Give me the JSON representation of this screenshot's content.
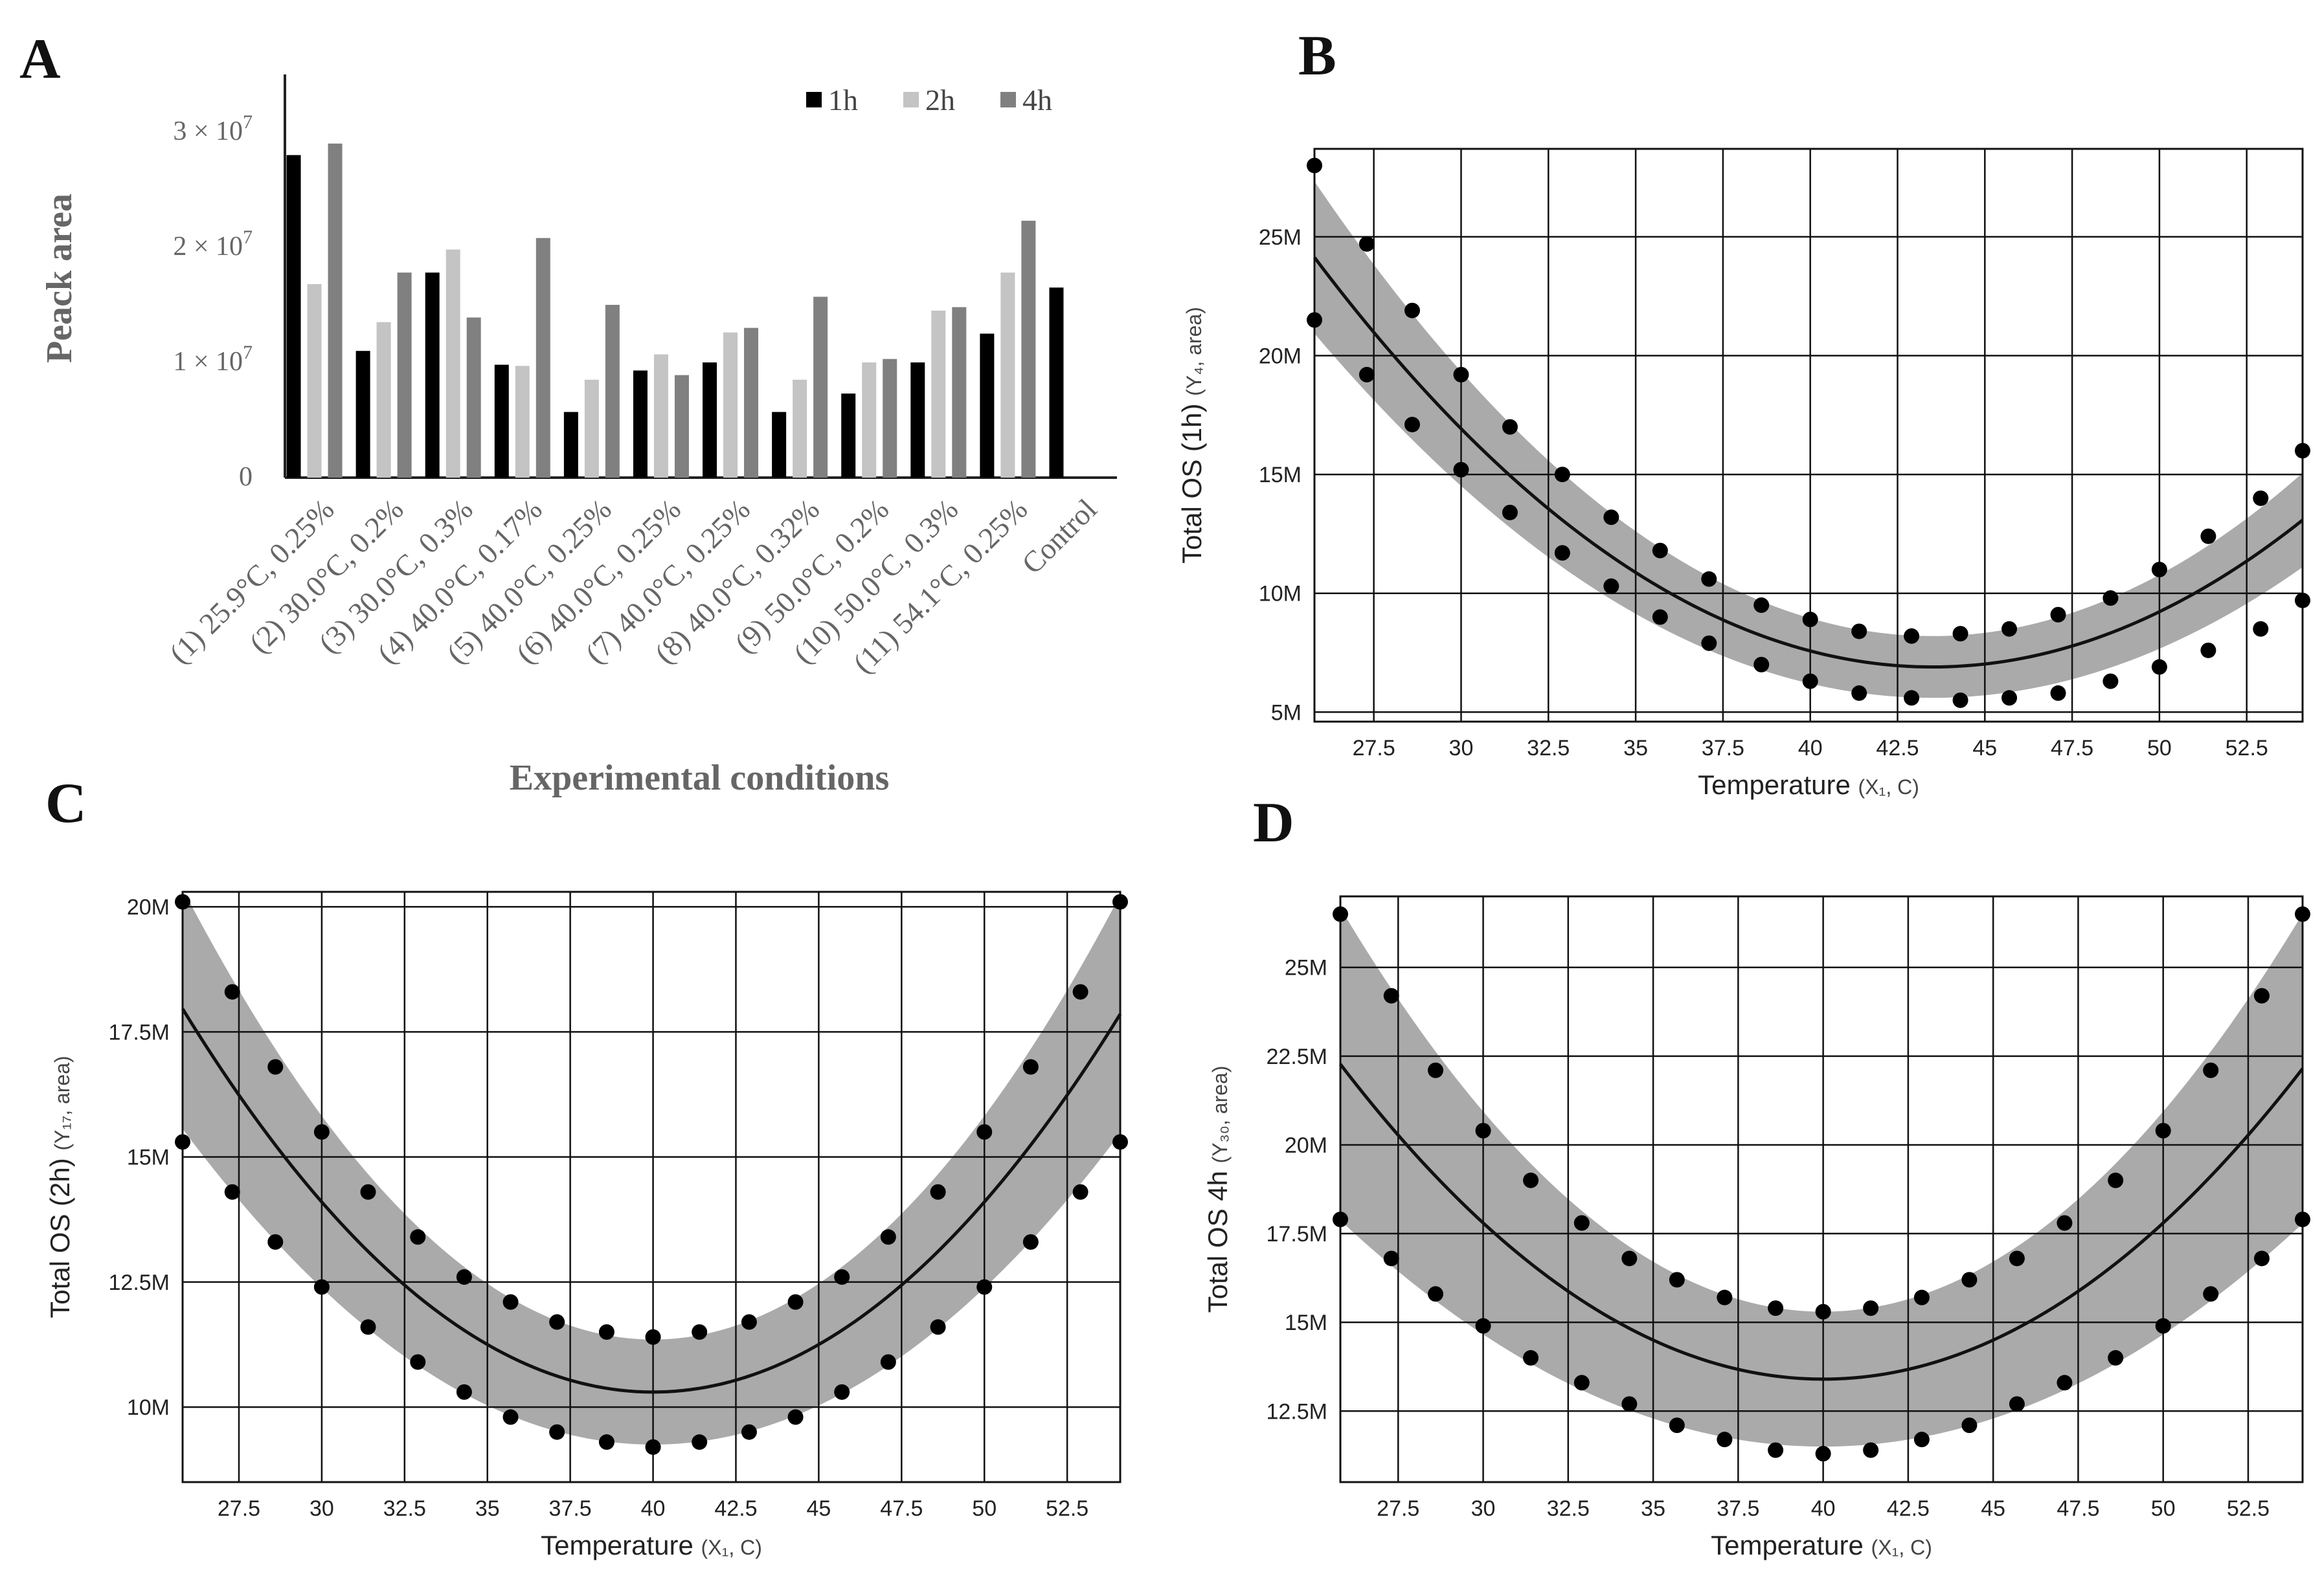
{
  "chart_data": [
    {
      "panel": "A",
      "type": "bar",
      "title": "",
      "xlabel": "Experimental conditions",
      "ylabel": "Peack area",
      "ylim": [
        0,
        35000000
      ],
      "yticks": [
        {
          "value": 0,
          "label": "0"
        },
        {
          "value": 10000000,
          "label": "1 × 10",
          "exp": "7"
        },
        {
          "value": 20000000,
          "label": "2 × 10",
          "exp": "7"
        },
        {
          "value": 30000000,
          "label": "3 × 10",
          "exp": "7"
        }
      ],
      "categories": [
        "(1) 25.9°C, 0.25%",
        "(2) 30.0°C, 0.2%",
        "(3) 30.0°C, 0.3%",
        "(4) 40.0°C, 0.17%",
        "(5) 40.0°C, 0.25%",
        "(6) 40.0°C, 0.25%",
        "(7) 40.0°C, 0.25%",
        "(8) 40.0°C, 0.32%",
        "(9) 50.0°C, 0.2%",
        "(10) 50.0°C, 0.3%",
        "(11) 54.1°C, 0.25%",
        "Control"
      ],
      "legend_position": "top-right",
      "series": [
        {
          "name": "1h",
          "color": "#000000",
          "values": [
            28000000,
            11000000,
            17800000,
            9800000,
            5700000,
            9300000,
            10000000,
            5700000,
            7300000,
            10000000,
            12500000,
            16500000
          ]
        },
        {
          "name": "2h",
          "color": "#c4c4c4",
          "values": [
            16800000,
            13500000,
            19800000,
            9700000,
            8500000,
            10700000,
            12600000,
            8500000,
            10000000,
            14500000,
            17800000,
            null
          ]
        },
        {
          "name": "4h",
          "color": "#808080",
          "values": [
            29000000,
            17800000,
            13900000,
            20800000,
            15000000,
            8900000,
            13000000,
            15700000,
            10300000,
            14800000,
            22300000,
            null
          ]
        }
      ]
    },
    {
      "panel": "B",
      "type": "line",
      "xlabel": "Temperature",
      "xlabel_sub": "(X₁, C)",
      "ylabel": "Total OS (1h)",
      "ylabel_sub": "(Y₄, area)",
      "xlim": [
        25.8,
        54.1
      ],
      "ylim": [
        4600000,
        28700000
      ],
      "xticks": [
        27.5,
        30,
        32.5,
        35,
        37.5,
        40,
        42.5,
        45,
        47.5,
        50,
        52.5
      ],
      "xtick_labels": [
        "27.5",
        "30",
        "32.5",
        "35",
        "37.5",
        "40",
        "42.5",
        "45",
        "47.5",
        "50",
        "52.5"
      ],
      "yticks": [
        5000000,
        10000000,
        15000000,
        20000000,
        25000000
      ],
      "ytick_labels": [
        "5M",
        "10M",
        "15M",
        "20M",
        "25M"
      ],
      "fit": {
        "model": "quadratic",
        "vertex_x": 43.5,
        "vertex_y": 6900000,
        "curvature": 55000
      },
      "band_halfwidth_center": 1300000,
      "band_halfwidth_edge": 3200000,
      "points_x": [
        25.8,
        27.3,
        28.6,
        30.0,
        31.4,
        32.9,
        34.3,
        35.7,
        37.1,
        38.6,
        40.0,
        41.4,
        42.9,
        44.3,
        45.7,
        47.1,
        48.6,
        50.0,
        51.4,
        52.9,
        54.1
      ],
      "upper_points": [
        28000000,
        24700000,
        21900000,
        19200000,
        17000000,
        15000000,
        13200000,
        11800000,
        10600000,
        9500000,
        8900000,
        8400000,
        8200000,
        8300000,
        8500000,
        9100000,
        9800000,
        11000000,
        12400000,
        14000000,
        16000000
      ],
      "lower_points": [
        21500000,
        19200000,
        17100000,
        15200000,
        13400000,
        11700000,
        10300000,
        9000000,
        7900000,
        7000000,
        6300000,
        5800000,
        5600000,
        5500000,
        5600000,
        5800000,
        6300000,
        6900000,
        7600000,
        8500000,
        9700000
      ]
    },
    {
      "panel": "C",
      "type": "line",
      "xlabel": "Temperature",
      "xlabel_sub": "(X₁, C)",
      "ylabel": "Total OS (2h)",
      "ylabel_sub": "(Y₁₇, area)",
      "xlim": [
        25.8,
        54.1
      ],
      "ylim": [
        8500000,
        20300000
      ],
      "xticks": [
        27.5,
        30,
        32.5,
        35,
        37.5,
        40,
        42.5,
        45,
        47.5,
        50,
        52.5
      ],
      "xtick_labels": [
        "27.5",
        "30",
        "32.5",
        "35",
        "37.5",
        "40",
        "42.5",
        "45",
        "47.5",
        "50",
        "52.5"
      ],
      "yticks": [
        10000000,
        12500000,
        15000000,
        17500000,
        20000000
      ],
      "ytick_labels": [
        "10M",
        "12.5M",
        "15M",
        "17.5M",
        "20M"
      ],
      "fit": {
        "model": "quadratic",
        "vertex_x": 40.0,
        "vertex_y": 10300000,
        "curvature": 38000
      },
      "band_halfwidth_center": 1050000,
      "band_halfwidth_edge": 2400000,
      "points_x": [
        25.8,
        27.3,
        28.6,
        30.0,
        31.4,
        32.9,
        34.3,
        35.7,
        37.1,
        38.6,
        40.0,
        41.4,
        42.9,
        44.3,
        45.7,
        47.1,
        48.6,
        50.0,
        51.4,
        52.9,
        54.1
      ],
      "upper_points": [
        20100000,
        18300000,
        16800000,
        15500000,
        14300000,
        13400000,
        12600000,
        12100000,
        11700000,
        11500000,
        11400000,
        11500000,
        11700000,
        12100000,
        12600000,
        13400000,
        14300000,
        15500000,
        16800000,
        18300000,
        20100000
      ],
      "lower_points": [
        15300000,
        14300000,
        13300000,
        12400000,
        11600000,
        10900000,
        10300000,
        9800000,
        9500000,
        9300000,
        9200000,
        9300000,
        9500000,
        9800000,
        10300000,
        10900000,
        11600000,
        12400000,
        13300000,
        14300000,
        15300000
      ]
    },
    {
      "panel": "D",
      "type": "line",
      "xlabel": "Temperature",
      "xlabel_sub": "(X₁, C)",
      "ylabel": "Total OS  4h",
      "ylabel_sub": "(Y₃₀, area)",
      "xlim": [
        25.8,
        54.1
      ],
      "ylim": [
        10500000,
        27000000
      ],
      "xticks": [
        27.5,
        30,
        32.5,
        35,
        37.5,
        40,
        42.5,
        45,
        47.5,
        50,
        52.5
      ],
      "xtick_labels": [
        "27.5",
        "30",
        "32.5",
        "35",
        "37.5",
        "40",
        "42.5",
        "45",
        "47.5",
        "50",
        "52.5"
      ],
      "yticks": [
        12500000,
        15000000,
        17500000,
        20000000,
        22500000,
        25000000
      ],
      "ytick_labels": [
        "12.5M",
        "15M",
        "17.5M",
        "20M",
        "22.5M",
        "25M"
      ],
      "fit": {
        "model": "quadratic",
        "vertex_x": 40.0,
        "vertex_y": 13400000,
        "curvature": 44000
      },
      "band_halfwidth_center": 1900000,
      "band_halfwidth_edge": 4400000,
      "points_x": [
        25.8,
        27.3,
        28.6,
        30.0,
        31.4,
        32.9,
        34.3,
        35.7,
        37.1,
        38.6,
        40.0,
        41.4,
        42.9,
        44.3,
        45.7,
        47.1,
        48.6,
        50.0,
        51.4,
        52.9,
        54.1
      ],
      "upper_points": [
        26500000,
        24200000,
        22100000,
        20400000,
        19000000,
        17800000,
        16800000,
        16200000,
        15700000,
        15400000,
        15300000,
        15400000,
        15700000,
        16200000,
        16800000,
        17800000,
        19000000,
        20400000,
        22100000,
        24200000,
        26500000
      ],
      "lower_points": [
        17900000,
        16800000,
        15800000,
        14900000,
        14000000,
        13300000,
        12700000,
        12100000,
        11700000,
        11400000,
        11300000,
        11400000,
        11700000,
        12100000,
        12700000,
        13300000,
        14000000,
        14900000,
        15800000,
        16800000,
        17900000
      ]
    }
  ]
}
